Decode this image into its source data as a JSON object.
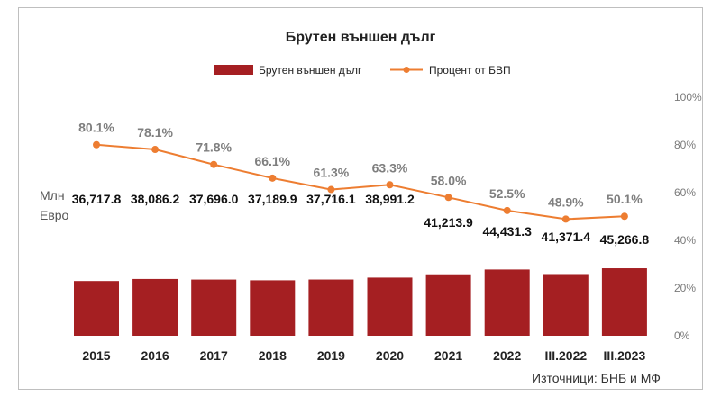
{
  "chart_data": {
    "type": "bar",
    "title": "Брутен външен дълг",
    "categories": [
      "2015",
      "2016",
      "2017",
      "2018",
      "2019",
      "2020",
      "2021",
      "2022",
      "III.2022",
      "III.2023"
    ],
    "series": [
      {
        "name": "Брутен външен дълг",
        "kind": "bar",
        "axis": "left",
        "color": "#a51f22",
        "values": [
          36717.8,
          38086.2,
          37696.0,
          37189.9,
          37716.1,
          38991.2,
          41213.9,
          44431.3,
          41371.4,
          45266.8
        ],
        "labels": [
          "36,717.8",
          "38,086.2",
          "37,696.0",
          "37,189.9",
          "37,716.1",
          "38,991.2",
          "41,213.9",
          "44,431.3",
          "41,371.4",
          "45,266.8"
        ]
      },
      {
        "name": "Процент от БВП",
        "kind": "line",
        "axis": "right",
        "color": "#ed7d31",
        "values": [
          80.1,
          78.1,
          71.8,
          66.1,
          61.3,
          63.3,
          58.0,
          52.5,
          48.9,
          50.1
        ],
        "labels": [
          "80.1%",
          "78.1%",
          "71.8%",
          "66.1%",
          "61.3%",
          "63.3%",
          "58.0%",
          "52.5%",
          "48.9%",
          "50.1%"
        ]
      }
    ],
    "y_right": {
      "min": 0,
      "max": 100,
      "ticks": [
        "0%",
        "20%",
        "40%",
        "60%",
        "80%",
        "100%"
      ]
    },
    "y_left_label": [
      "Млн",
      "Евро"
    ],
    "legend_position": "top-center",
    "source": "Източници: БНБ и МФ"
  }
}
